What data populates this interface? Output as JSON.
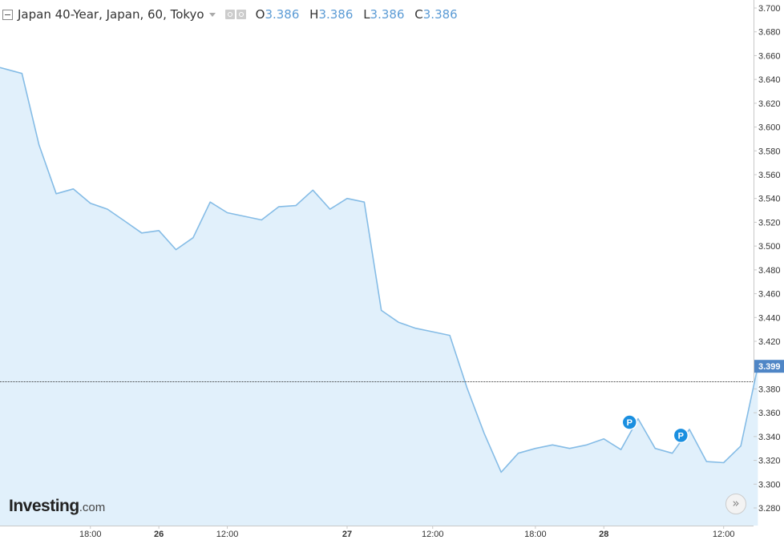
{
  "legend": {
    "title": "Japan 40-Year, Japan, 60, Tokyo",
    "ohlc": [
      {
        "key": "O",
        "value": "3.386"
      },
      {
        "key": "H",
        "value": "3.386"
      },
      {
        "key": "L",
        "value": "3.386"
      },
      {
        "key": "C",
        "value": "3.386"
      }
    ]
  },
  "brand": {
    "bold": "Investing",
    "light": ".com"
  },
  "scroll_button": {
    "icon": "double-chevron-right-icon",
    "glyph": "»"
  },
  "colors": {
    "line": "#85bce6",
    "fill": "#e1f0fb",
    "last_price_bg": "#4f86c6",
    "marker": "#1a8fe0"
  },
  "chart_data": {
    "type": "area",
    "title": "",
    "xlabel": "",
    "ylabel": "",
    "ylim": [
      3.272,
      3.702
    ],
    "y_ticks": [
      "3.700",
      "3.680",
      "3.660",
      "3.640",
      "3.620",
      "3.600",
      "3.580",
      "3.560",
      "3.540",
      "3.520",
      "3.500",
      "3.480",
      "3.460",
      "3.440",
      "3.420",
      "3.400",
      "3.380",
      "3.360",
      "3.340",
      "3.320",
      "3.300",
      "3.280"
    ],
    "x_ticks": [
      "18:00",
      "26",
      "12:00",
      "27",
      "12:00",
      "18:00",
      "28",
      "12:00"
    ],
    "x_tick_bold": [
      false,
      true,
      false,
      true,
      false,
      false,
      true,
      false
    ],
    "values": [
      3.65,
      3.645,
      3.585,
      3.544,
      3.548,
      3.536,
      3.531,
      3.521,
      3.511,
      3.513,
      3.497,
      3.507,
      3.537,
      3.528,
      3.525,
      3.522,
      3.533,
      3.534,
      3.547,
      3.531,
      3.54,
      3.537,
      3.446,
      3.436,
      3.431,
      3.428,
      3.425,
      3.381,
      3.343,
      3.31,
      3.326,
      3.33,
      3.333,
      3.33,
      3.333,
      3.338,
      3.329,
      3.355,
      3.33,
      3.326,
      3.346,
      3.319,
      3.318,
      3.332,
      3.399
    ],
    "last_price": "3.399",
    "current_line": 3.386,
    "markers": [
      {
        "label": "P",
        "index": 36.5,
        "y": 3.352
      },
      {
        "label": "P",
        "index": 39.5,
        "y": 3.341
      }
    ],
    "grid": false
  }
}
